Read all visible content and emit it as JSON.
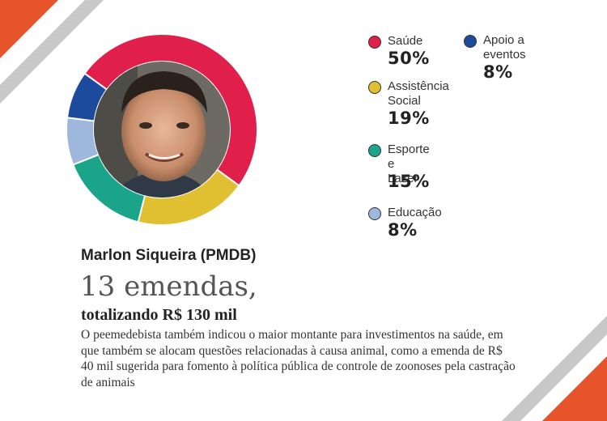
{
  "colors": {
    "accent_orange": "#e8542a",
    "stripe_gray": "#c8c8c8"
  },
  "chart_data": {
    "type": "pie",
    "title": "",
    "series": [
      {
        "name": "Saúde",
        "label_lines": [
          "Saúde"
        ],
        "value": 50,
        "display": "50%",
        "color": "#e0204a"
      },
      {
        "name": "Assistência Social",
        "label_lines": [
          "Assistência",
          "Social"
        ],
        "value": 19,
        "display": "19%",
        "color": "#e0c030"
      },
      {
        "name": "Esporte e Lazer",
        "label_lines": [
          "Esporte e",
          "Lazer"
        ],
        "value": 15,
        "display": "15%",
        "color": "#1aa58a"
      },
      {
        "name": "Educação",
        "label_lines": [
          "Educação"
        ],
        "value": 8,
        "display": "8%",
        "color": "#9fb6dd"
      },
      {
        "name": "Apoio a eventos",
        "label_lines": [
          "Apoio a",
          "eventos"
        ],
        "value": 8,
        "display": "8%",
        "color": "#1d4a9c"
      }
    ]
  },
  "profile": {
    "photo": "avatar-photo",
    "name": "Marlon Siqueira (PMDB)",
    "amendments": "13 emendas,",
    "total": "totalizando R$ 130 mil",
    "description": "O peemedebista também indicou o maior montante para investimentos na saúde, em que também se alocam questões relacionadas à causa animal, como a emenda de R$ 40 mil sugerida para fomento à política pública de controle de zoonoses pela castração de animais"
  }
}
